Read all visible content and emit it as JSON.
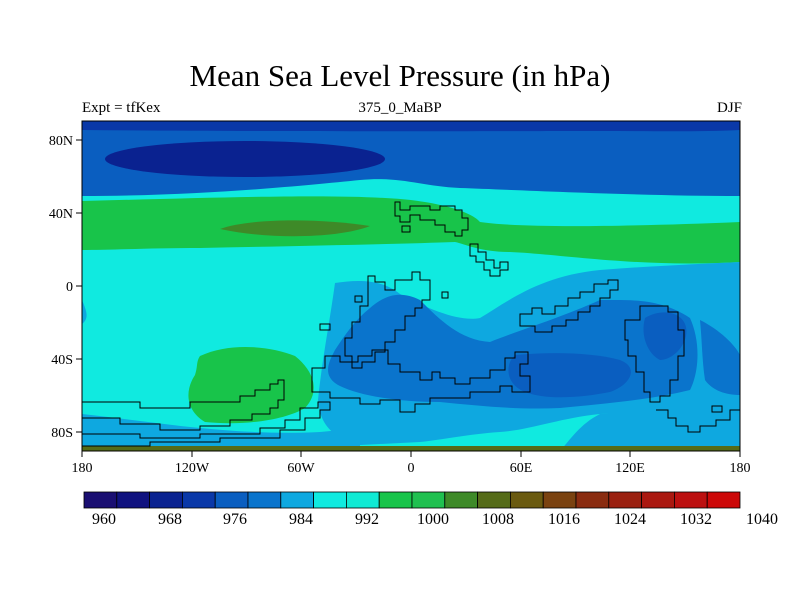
{
  "title": "Mean Sea Level Pressure (in hPa)",
  "subtitle_left": "Expt = tfKex",
  "subtitle_center": "375_0_MaBP",
  "subtitle_right": "DJF",
  "map": {
    "projection": "cylindrical equidistant",
    "lon_range": [
      -180,
      180
    ],
    "lat_range": [
      -90,
      90
    ],
    "x_ticks": [
      "180",
      "120W",
      "60W",
      "0",
      "60E",
      "120E",
      "180"
    ],
    "y_ticks": [
      "80N",
      "40N",
      "0",
      "40S",
      "80S"
    ],
    "field": "mean sea level pressure",
    "units": "hPa"
  },
  "legend": {
    "colors": [
      "#1a0f72",
      "#10127f",
      "#0a2290",
      "#0a38a8",
      "#0a5ec0",
      "#0a74cc",
      "#0ea8e0",
      "#10eae0",
      "#10ead4",
      "#18c44a",
      "#20c050",
      "#3e8a28",
      "#556b18",
      "#6a5a10",
      "#7a4210",
      "#8a2c10",
      "#9a2010",
      "#aa1810",
      "#bc1010",
      "#cc0808"
    ],
    "labels": [
      "960",
      "968",
      "976",
      "984",
      "992",
      "1000",
      "1008",
      "1016",
      "1024",
      "1032",
      "1040"
    ]
  }
}
